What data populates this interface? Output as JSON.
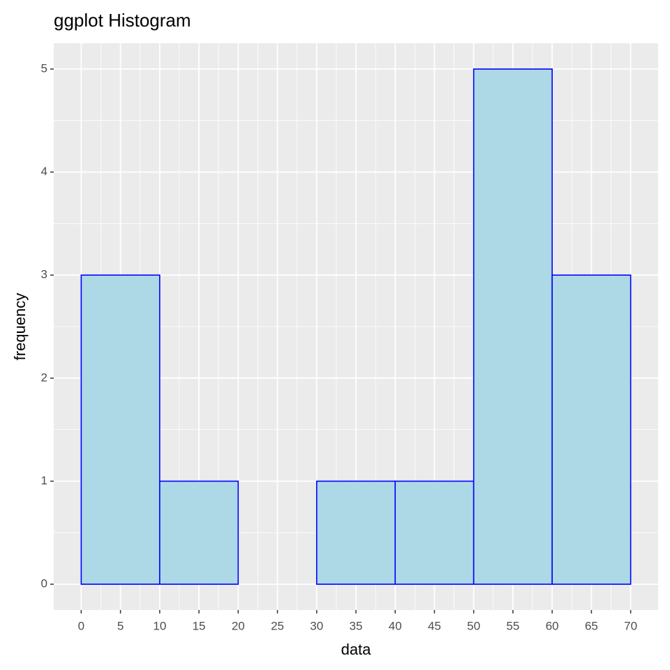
{
  "chart_data": {
    "type": "histogram",
    "title": "ggplot Histogram",
    "x_label": "data",
    "y_label": "frequency",
    "bins": [
      0,
      10,
      20,
      30,
      40,
      50,
      60,
      70
    ],
    "values": [
      3,
      1,
      0,
      1,
      1,
      5,
      3
    ],
    "fill": "#add8e6",
    "edge_color": "#0000ff",
    "xlim": [
      -3.5,
      73.5
    ],
    "xticks": [
      0,
      5,
      10,
      15,
      20,
      25,
      30,
      35,
      40,
      45,
      50,
      55,
      60,
      65,
      70
    ],
    "ylim": [
      -0.25,
      5.25
    ],
    "yticks": [
      0,
      1,
      2,
      3,
      4,
      5
    ],
    "grid": true
  }
}
